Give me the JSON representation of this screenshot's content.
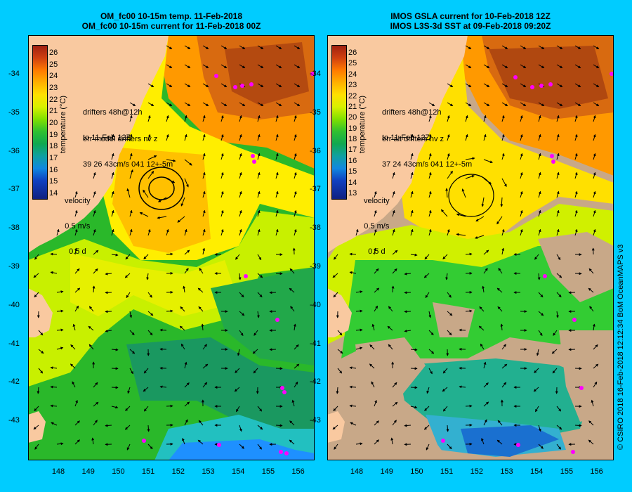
{
  "left": {
    "title_line1": "OM_fc00 10-15m temp. 11-Feb-2018",
    "title_line2": "OM_fc00 10-15m current for 11-Feb-2018 00Z",
    "drifters": "drifters 48h@12h",
    "drifters_to": "to 11-Feb 12Z",
    "err_label": "err model drifters nv z",
    "err_values": "39 26 43cm/s 041 12+-5m",
    "velocity": "velocity",
    "vel_scale": "0.5 m/s",
    "vel_days": "0.5 d",
    "colorbar_ticks": [
      "26",
      "25",
      "24",
      "23",
      "22",
      "21",
      "20",
      "19",
      "18",
      "17",
      "16",
      "15",
      "14"
    ],
    "colorbar_title": "temperature (°C)"
  },
  "right": {
    "title_line1": "IMOS GSLA current for 10-Feb-2018 12Z",
    "title_line2": "IMOS L3S-3d SST at 09-Feb-2018 09:20Z",
    "drifters": "drifters 48h@12h",
    "drifters_to": "to 11-Feb 12Z",
    "err_label": "err alt drifters nv z",
    "err_values": "37 24 43cm/s 041 12+-5m",
    "velocity": "velocity",
    "vel_scale": "0.5 m/s",
    "vel_days": "0.5 d",
    "colorbar_ticks": [
      "26",
      "25",
      "24",
      "23",
      "22",
      "21",
      "20",
      "19",
      "18",
      "17",
      "16",
      "15",
      "14",
      "13"
    ],
    "colorbar_title": "temperature (°C)"
  },
  "lat_ticks": [
    "-34",
    "-35",
    "-36",
    "-37",
    "-38",
    "-39",
    "-40",
    "-41",
    "-42",
    "-43"
  ],
  "lon_ticks": [
    "148",
    "149",
    "150",
    "151",
    "152",
    "153",
    "154",
    "155",
    "156"
  ],
  "credit": "© CSIRO 2018   16-Feb-2018 12:12:34 BoM OceanMAPS v3",
  "colors": {
    "background": "#00ccff",
    "land": "#f9c9a0",
    "nodata": "#c8a888",
    "drifter": "#ff00ff"
  }
}
